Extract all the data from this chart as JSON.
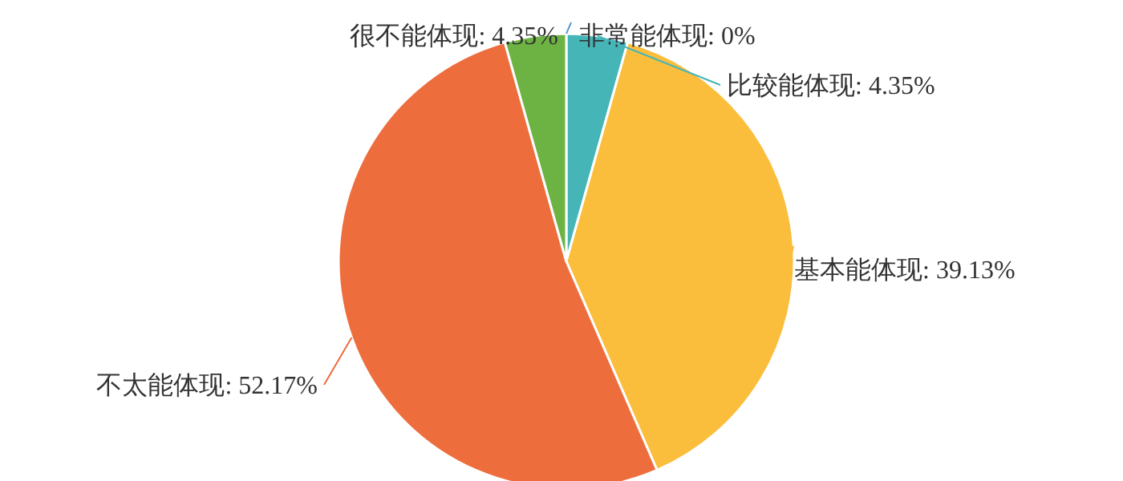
{
  "chart_data": {
    "type": "pie",
    "categories": [
      "非常能体现",
      "比较能体现",
      "基本能体现",
      "不太能体现",
      "很不能体现"
    ],
    "values": [
      0,
      4.35,
      39.13,
      52.17,
      4.35
    ],
    "value_labels": [
      "0%",
      "4.35%",
      "39.13%",
      "52.17%",
      "4.35%"
    ],
    "colors": [
      "#5b9bd5",
      "#45b5b8",
      "#fbbd3c",
      "#ee6d3d",
      "#6db343"
    ]
  }
}
